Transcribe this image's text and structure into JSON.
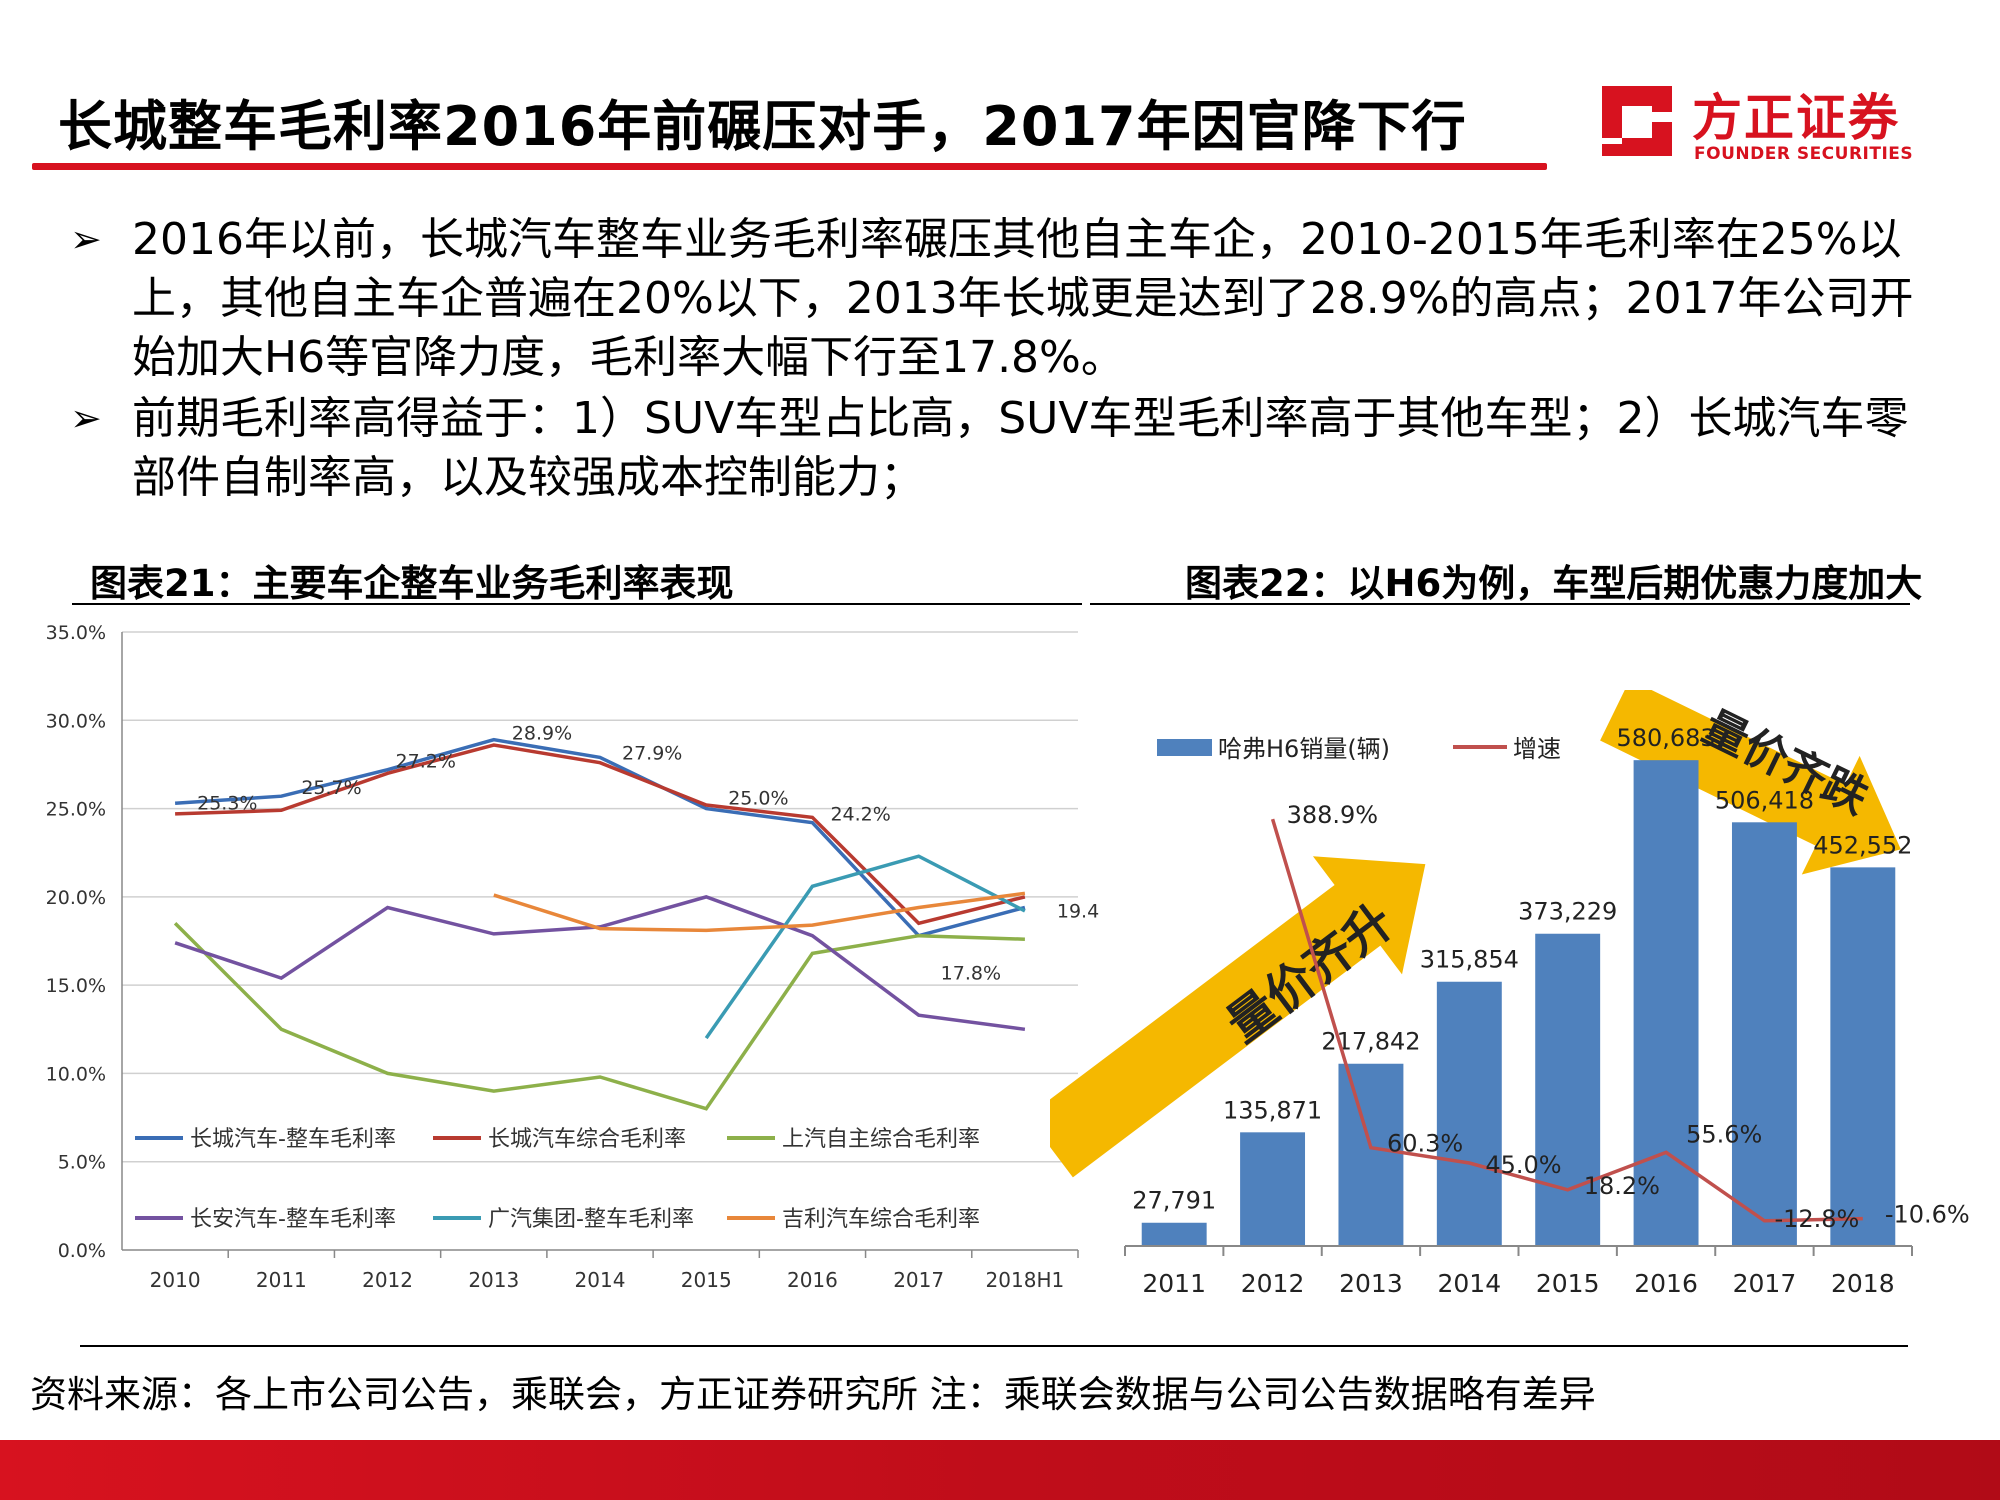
{
  "header": {
    "title": "长城整车毛利率2016年前碾压对手，2017年因官降下行",
    "logo_cn": "方正证券",
    "logo_en": "FOUNDER SECURITIES",
    "accent_color": "#d7121f"
  },
  "bullets": [
    {
      "mark": "➢",
      "text": "2016年以前，长城汽车整车业务毛利率碾压其他自主车企，2010-2015年毛利率在25%以上，其他自主车企普遍在20%以下，2013年长城更是达到了28.9%的高点；2017年公司开始加大H6等官降力度，毛利率大幅下行至17.8%。"
    },
    {
      "mark": "➢",
      "text": "前期毛利率高得益于：1）SUV车型占比高，SUV车型毛利率高于其他车型；2）长城汽车零部件自制率高，以及较强成本控制能力；"
    }
  ],
  "chart_titles": {
    "left": "图表21：主要车企整车业务毛利率表现",
    "right": "图表22：以H6为例，车型后期优惠力度加大"
  },
  "source_note": "资料来源：各上市公司公告，乘联会，方正证券研究所  注：乘联会数据与公司公告数据略有差异",
  "chart_data": [
    {
      "type": "line",
      "categories": [
        "2010",
        "2011",
        "2012",
        "2013",
        "2014",
        "2015",
        "2016",
        "2017",
        "2018H1"
      ],
      "ylim": [
        0,
        35
      ],
      "yticks": [
        "0.0%",
        "5.0%",
        "10.0%",
        "15.0%",
        "20.0%",
        "25.0%",
        "30.0%",
        "35.0%"
      ],
      "grid": true,
      "legend": "bottom",
      "series": [
        {
          "name": "长城汽车-整车毛利率",
          "color": "#3a6db5",
          "values": [
            25.3,
            25.7,
            27.2,
            28.9,
            27.9,
            25.0,
            24.2,
            17.8,
            19.4
          ],
          "labels": [
            "25.3%",
            "25.7%",
            "27.2%",
            "28.9%",
            "27.9%",
            "25.0%",
            "24.2%",
            "17.8%",
            "19.4%"
          ]
        },
        {
          "name": "长城汽车综合毛利率",
          "color": "#b83a30",
          "values": [
            24.7,
            24.9,
            27.0,
            28.6,
            27.6,
            25.2,
            24.5,
            18.5,
            20.0
          ]
        },
        {
          "name": "上汽自主综合毛利率",
          "color": "#8db04a",
          "values": [
            18.5,
            12.5,
            10.0,
            9.0,
            9.8,
            8.0,
            16.8,
            17.8,
            17.6
          ]
        },
        {
          "name": "长安汽车-整车毛利率",
          "color": "#7352a0",
          "values": [
            17.4,
            15.4,
            19.4,
            17.9,
            18.3,
            20.0,
            17.8,
            13.3,
            12.5
          ]
        },
        {
          "name": "广汽集团-整车毛利率",
          "color": "#3a9bb3",
          "values": [
            null,
            null,
            null,
            null,
            null,
            12.0,
            20.6,
            22.3,
            19.2
          ]
        },
        {
          "name": "吉利汽车综合毛利率",
          "color": "#e8873a",
          "values": [
            null,
            null,
            null,
            20.1,
            18.2,
            18.1,
            18.4,
            19.4,
            20.2
          ]
        }
      ]
    },
    {
      "type": "bar",
      "categories": [
        "2011",
        "2012",
        "2013",
        "2014",
        "2015",
        "2016",
        "2017",
        "2018"
      ],
      "series": [
        {
          "name": "哈弗H6销量(辆)",
          "color": "#4f81bd",
          "values": [
            27791,
            135871,
            217842,
            315854,
            373229,
            580683,
            506418,
            452552
          ],
          "labels": [
            "27,791",
            "135,871",
            "217,842",
            "315,854",
            "373,229",
            "580,683",
            "506,418",
            "452,552"
          ]
        },
        {
          "name": "增速",
          "type": "line",
          "color": "#c0504d",
          "values": [
            null,
            388.9,
            60.3,
            45.0,
            18.2,
            55.6,
            -12.8,
            -10.6
          ],
          "labels": [
            "",
            "388.9%",
            "60.3%",
            "45.0%",
            "18.2%",
            "55.6%",
            "-12.8%",
            "-10.6%"
          ]
        }
      ],
      "annotations": [
        "量价齐升",
        "量价齐跌"
      ],
      "annotation_color": "#f5b800",
      "legend": "top-left"
    }
  ]
}
